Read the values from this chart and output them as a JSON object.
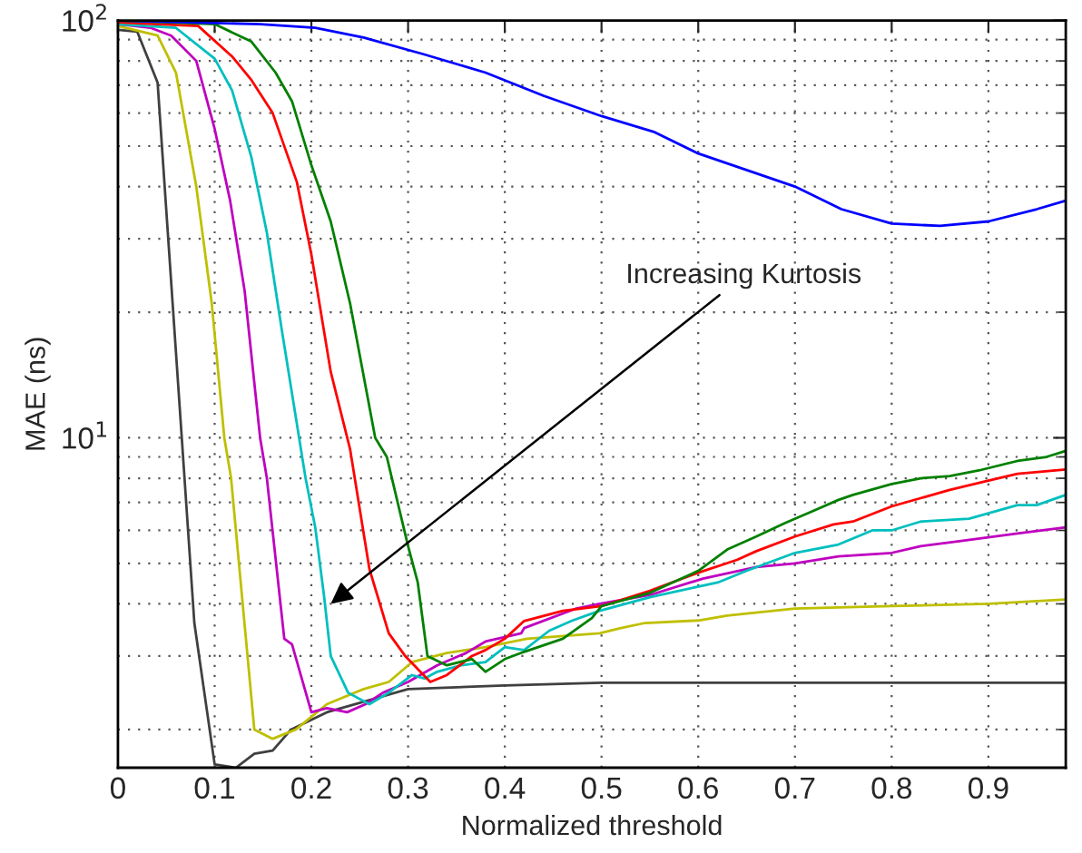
{
  "chart_data": {
    "type": "line",
    "xlabel": "Normalized threshold",
    "ylabel": "MAE (ns)",
    "log": "y",
    "grid": true,
    "marker": "none",
    "line_style": "solid",
    "xlim": [
      0,
      0.98
    ],
    "xticks": [
      0,
      0.1,
      0.2,
      0.3,
      0.4,
      0.5,
      0.6,
      0.7,
      0.8,
      0.9
    ],
    "ylim": [
      1.62,
      100
    ],
    "yticks": [
      {
        "value": 10,
        "label": "10$^{1}$"
      },
      {
        "value": 100,
        "label": "10$^{2}$"
      }
    ],
    "annotations": [
      {
        "text": "Increasing Kurtosis",
        "x": 0.22,
        "y": 4.0
      }
    ],
    "series": [
      {
        "color": "#0000ff",
        "x": [
          0,
          0.147,
          0.204,
          0.254,
          0.316,
          0.38,
          0.44,
          0.5,
          0.555,
          0.6,
          0.7,
          0.748,
          0.8,
          0.85,
          0.9,
          0.95,
          0.98
        ],
        "values": [
          100,
          98,
          96,
          91,
          83,
          75,
          66,
          59,
          54,
          48,
          40,
          35.3,
          32.6,
          32.2,
          33,
          35.3,
          37
        ]
      },
      {
        "color": "#008000",
        "x": [
          0,
          0.1,
          0.138,
          0.163,
          0.18,
          0.2,
          0.22,
          0.24,
          0.266,
          0.278,
          0.3,
          0.31,
          0.32,
          0.34,
          0.366,
          0.38,
          0.4,
          0.42,
          0.46,
          0.49,
          0.5,
          0.55,
          0.6,
          0.63,
          0.66,
          0.69,
          0.72,
          0.745,
          0.76,
          0.8,
          0.83,
          0.86,
          0.89,
          0.93,
          0.96,
          0.98
        ],
        "values": [
          100,
          98,
          89,
          75,
          64,
          45,
          33,
          21,
          10,
          9,
          5.5,
          4.5,
          3,
          2.85,
          2.95,
          2.75,
          2.95,
          3.07,
          3.3,
          3.7,
          3.95,
          4.25,
          4.8,
          5.4,
          5.8,
          6.25,
          6.7,
          7.1,
          7.3,
          7.75,
          8,
          8.1,
          8.35,
          8.8,
          9,
          9.3
        ]
      },
      {
        "color": "#ff0000",
        "x": [
          0,
          0.083,
          0.118,
          0.138,
          0.16,
          0.185,
          0.2,
          0.22,
          0.24,
          0.26,
          0.28,
          0.297,
          0.323,
          0.34,
          0.366,
          0.38,
          0.4,
          0.42,
          0.46,
          0.5,
          0.55,
          0.6,
          0.64,
          0.66,
          0.7,
          0.74,
          0.76,
          0.8,
          0.86,
          0.9,
          0.93,
          0.98
        ],
        "values": [
          99,
          97,
          82,
          72,
          60,
          41,
          27.5,
          14.4,
          9.4,
          4.85,
          3.4,
          3,
          2.6,
          2.7,
          3,
          3.1,
          3.3,
          3.64,
          3.85,
          3.95,
          4.3,
          4.75,
          5.1,
          5.35,
          5.8,
          6.2,
          6.3,
          6.85,
          7.5,
          7.9,
          8.2,
          8.4
        ]
      },
      {
        "color": "#00bfbf",
        "x": [
          0,
          0.06,
          0.1,
          0.118,
          0.138,
          0.154,
          0.169,
          0.185,
          0.194,
          0.204,
          0.213,
          0.22,
          0.238,
          0.26,
          0.28,
          0.304,
          0.317,
          0.33,
          0.355,
          0.38,
          0.4,
          0.42,
          0.446,
          0.47,
          0.498,
          0.55,
          0.58,
          0.62,
          0.65,
          0.7,
          0.745,
          0.78,
          0.8,
          0.83,
          0.88,
          0.93,
          0.95,
          0.98
        ],
        "values": [
          98,
          96,
          81,
          68,
          47,
          31,
          18.4,
          10.8,
          8,
          6.1,
          4.2,
          3,
          2.45,
          2.3,
          2.45,
          2.7,
          2.65,
          2.75,
          2.85,
          2.9,
          3.15,
          3.1,
          3.45,
          3.65,
          3.85,
          4.15,
          4.3,
          4.5,
          4.8,
          5.3,
          5.55,
          6,
          6,
          6.3,
          6.4,
          6.9,
          6.9,
          7.3
        ]
      },
      {
        "color": "#bf00bf",
        "x": [
          0,
          0.034,
          0.055,
          0.081,
          0.1,
          0.116,
          0.131,
          0.147,
          0.154,
          0.172,
          0.18,
          0.2,
          0.216,
          0.237,
          0.256,
          0.274,
          0.3,
          0.33,
          0.36,
          0.38,
          0.417,
          0.42,
          0.474,
          0.498,
          0.55,
          0.605,
          0.66,
          0.7,
          0.745,
          0.8,
          0.83,
          0.87,
          0.93,
          0.98
        ],
        "values": [
          98,
          96,
          92,
          80,
          55,
          37,
          22.5,
          10,
          8,
          3.3,
          3.2,
          2.2,
          2.25,
          2.2,
          2.3,
          2.45,
          2.6,
          2.85,
          3.05,
          3.25,
          3.4,
          3.5,
          3.9,
          4,
          4.2,
          4.6,
          4.9,
          5,
          5.2,
          5.3,
          5.5,
          5.65,
          5.9,
          6.1
        ]
      },
      {
        "color": "#bfbf00",
        "x": [
          0,
          0.041,
          0.06,
          0.081,
          0.097,
          0.11,
          0.117,
          0.141,
          0.16,
          0.184,
          0.216,
          0.254,
          0.28,
          0.304,
          0.34,
          0.38,
          0.423,
          0.498,
          0.52,
          0.545,
          0.6,
          0.63,
          0.7,
          0.8,
          0.9,
          0.98
        ],
        "values": [
          97,
          92,
          75,
          40,
          21,
          10,
          8,
          2,
          1.9,
          2,
          2.3,
          2.5,
          2.6,
          2.9,
          3.05,
          3.15,
          3.3,
          3.4,
          3.5,
          3.6,
          3.65,
          3.75,
          3.9,
          3.95,
          4,
          4.1
        ]
      },
      {
        "color": "#404040",
        "x": [
          0,
          0.02,
          0.041,
          0.066,
          0.079,
          0.1,
          0.122,
          0.141,
          0.16,
          0.179,
          0.216,
          0.3,
          0.4,
          0.5,
          0.7,
          0.98
        ],
        "values": [
          95,
          94,
          71,
          10,
          3.6,
          1.65,
          1.62,
          1.75,
          1.78,
          2,
          2.2,
          2.5,
          2.55,
          2.59,
          2.59,
          2.59
        ]
      }
    ]
  }
}
